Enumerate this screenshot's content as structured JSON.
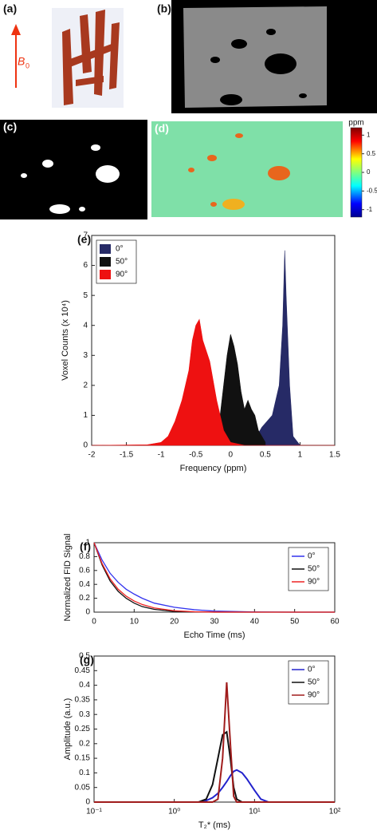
{
  "panels": {
    "a": "(a)",
    "b": "(b)",
    "c": "(c)",
    "d": "(d)",
    "field_label": "B",
    "field_subscript": "0"
  },
  "colorbar": {
    "title": "ppm",
    "lim": [
      -1.2,
      1.2
    ],
    "ticks": [
      1,
      0.5,
      0,
      -0.5,
      -1
    ]
  },
  "chart_data": [
    {
      "type": "area",
      "label": "(e)",
      "xlabel": "Frequency (ppm)",
      "ylabel": "Voxel Counts (x 10⁴)",
      "xlim": [
        -2,
        1.5
      ],
      "xticks": [
        -2,
        -1.5,
        -1,
        -0.5,
        0,
        0.5,
        1,
        1.5
      ],
      "ylim": [
        0,
        7
      ],
      "yticks": [
        0,
        1,
        2,
        3,
        4,
        5,
        6,
        7
      ],
      "legend": "upper left",
      "series": [
        {
          "name": "0°",
          "color": "#262a66",
          "x": [
            0.3,
            0.45,
            0.6,
            0.7,
            0.75,
            0.78,
            0.8,
            0.85,
            0.9,
            1.0
          ],
          "values": [
            0,
            0.6,
            1,
            2,
            4,
            6.5,
            5,
            2,
            0.3,
            0
          ]
        },
        {
          "name": "50°",
          "color": "#111111",
          "x": [
            -0.3,
            -0.15,
            -0.1,
            -0.05,
            0,
            0.05,
            0.1,
            0.15,
            0.2,
            0.25,
            0.3,
            0.35,
            0.4,
            0.5
          ],
          "values": [
            0.1,
            1,
            2,
            3,
            3.7,
            3.3,
            2.7,
            1.8,
            1.2,
            1.5,
            1.2,
            1,
            0.5,
            0.1
          ]
        },
        {
          "name": "90°",
          "color": "#ee1111",
          "x": [
            -2,
            -1.2,
            -1,
            -0.9,
            -0.8,
            -0.7,
            -0.6,
            -0.55,
            -0.5,
            -0.45,
            -0.4,
            -0.3,
            -0.2,
            -0.1,
            0,
            0.2,
            1.5
          ],
          "values": [
            0,
            0.02,
            0.1,
            0.3,
            0.8,
            1.5,
            2.5,
            3.5,
            4,
            4.2,
            3.5,
            2.8,
            1.5,
            0.5,
            0.1,
            0,
            0
          ]
        }
      ]
    },
    {
      "type": "line",
      "label": "(f)",
      "xlabel": "Echo Time (ms)",
      "ylabel": "Normalized FID Signal",
      "xlim": [
        0,
        60
      ],
      "xticks": [
        0,
        10,
        20,
        30,
        40,
        50,
        60
      ],
      "ylim": [
        0,
        1
      ],
      "yticks": [
        0,
        0.2,
        0.4,
        0.6,
        0.8,
        1
      ],
      "legend": "upper right",
      "series": [
        {
          "name": "0°",
          "color": "#3333ee",
          "x": [
            0,
            2,
            4,
            6,
            8,
            10,
            12,
            15,
            20,
            25,
            30,
            40,
            50,
            60
          ],
          "values": [
            1,
            0.75,
            0.56,
            0.43,
            0.33,
            0.26,
            0.2,
            0.13,
            0.07,
            0.035,
            0.015,
            0.003,
            0,
            0
          ]
        },
        {
          "name": "50°",
          "color": "#111111",
          "x": [
            0,
            2,
            4,
            6,
            8,
            10,
            12,
            15,
            20,
            25,
            30,
            40,
            50,
            60
          ],
          "values": [
            1,
            0.68,
            0.45,
            0.3,
            0.2,
            0.13,
            0.08,
            0.04,
            0.01,
            0.003,
            0,
            0,
            0,
            0
          ]
        },
        {
          "name": "90°",
          "color": "#ee2222",
          "x": [
            0,
            2,
            4,
            6,
            8,
            10,
            12,
            15,
            20,
            25,
            30,
            40,
            50,
            60
          ],
          "values": [
            1,
            0.7,
            0.48,
            0.33,
            0.23,
            0.16,
            0.11,
            0.06,
            0.02,
            0.005,
            0.001,
            0,
            0,
            0
          ]
        }
      ]
    },
    {
      "type": "line",
      "label": "(g)",
      "xlabel": "T₂* (ms)",
      "ylabel": "Amplitude (a.u.)",
      "xlog": true,
      "xlim": [
        0.1,
        100
      ],
      "xticks": [
        {
          "value": 0.1,
          "label": "10⁻¹"
        },
        {
          "value": 1,
          "label": "10⁰"
        },
        {
          "value": 10,
          "label": "10¹"
        },
        {
          "value": 100,
          "label": "10²"
        }
      ],
      "ylim": [
        0,
        0.5
      ],
      "yticks": [
        0,
        0.05,
        0.1,
        0.15,
        0.2,
        0.25,
        0.3,
        0.35,
        0.4,
        0.45,
        0.5
      ],
      "legend": "upper right",
      "series": [
        {
          "name": "0°",
          "color": "#2222cc",
          "x": [
            0.1,
            2,
            2.5,
            3,
            3.5,
            4,
            4.5,
            5,
            5.5,
            6,
            7,
            8,
            10,
            12,
            15,
            20,
            100
          ],
          "values": [
            0,
            0,
            0.005,
            0.015,
            0.03,
            0.05,
            0.07,
            0.09,
            0.105,
            0.11,
            0.1,
            0.08,
            0.04,
            0.01,
            0,
            0,
            0
          ]
        },
        {
          "name": "50°",
          "color": "#111111",
          "x": [
            0.1,
            2,
            2.5,
            3,
            3.5,
            4,
            4.5,
            5,
            5.5,
            6,
            7,
            8,
            10,
            12,
            15,
            20,
            100
          ],
          "values": [
            0,
            0,
            0.01,
            0.06,
            0.15,
            0.23,
            0.24,
            0.15,
            0.05,
            0.01,
            0,
            0,
            0,
            0,
            0,
            0,
            0
          ]
        },
        {
          "name": "90°",
          "color": "#a01c1c",
          "x": [
            0.1,
            2,
            2.5,
            3,
            3.5,
            4,
            4.5,
            5,
            5.5,
            6,
            7,
            8,
            10,
            12,
            15,
            20,
            100
          ],
          "values": [
            0,
            0,
            0,
            0,
            0.01,
            0.15,
            0.41,
            0.2,
            0.02,
            0,
            0,
            0,
            0,
            0,
            0,
            0,
            0
          ]
        }
      ]
    }
  ]
}
